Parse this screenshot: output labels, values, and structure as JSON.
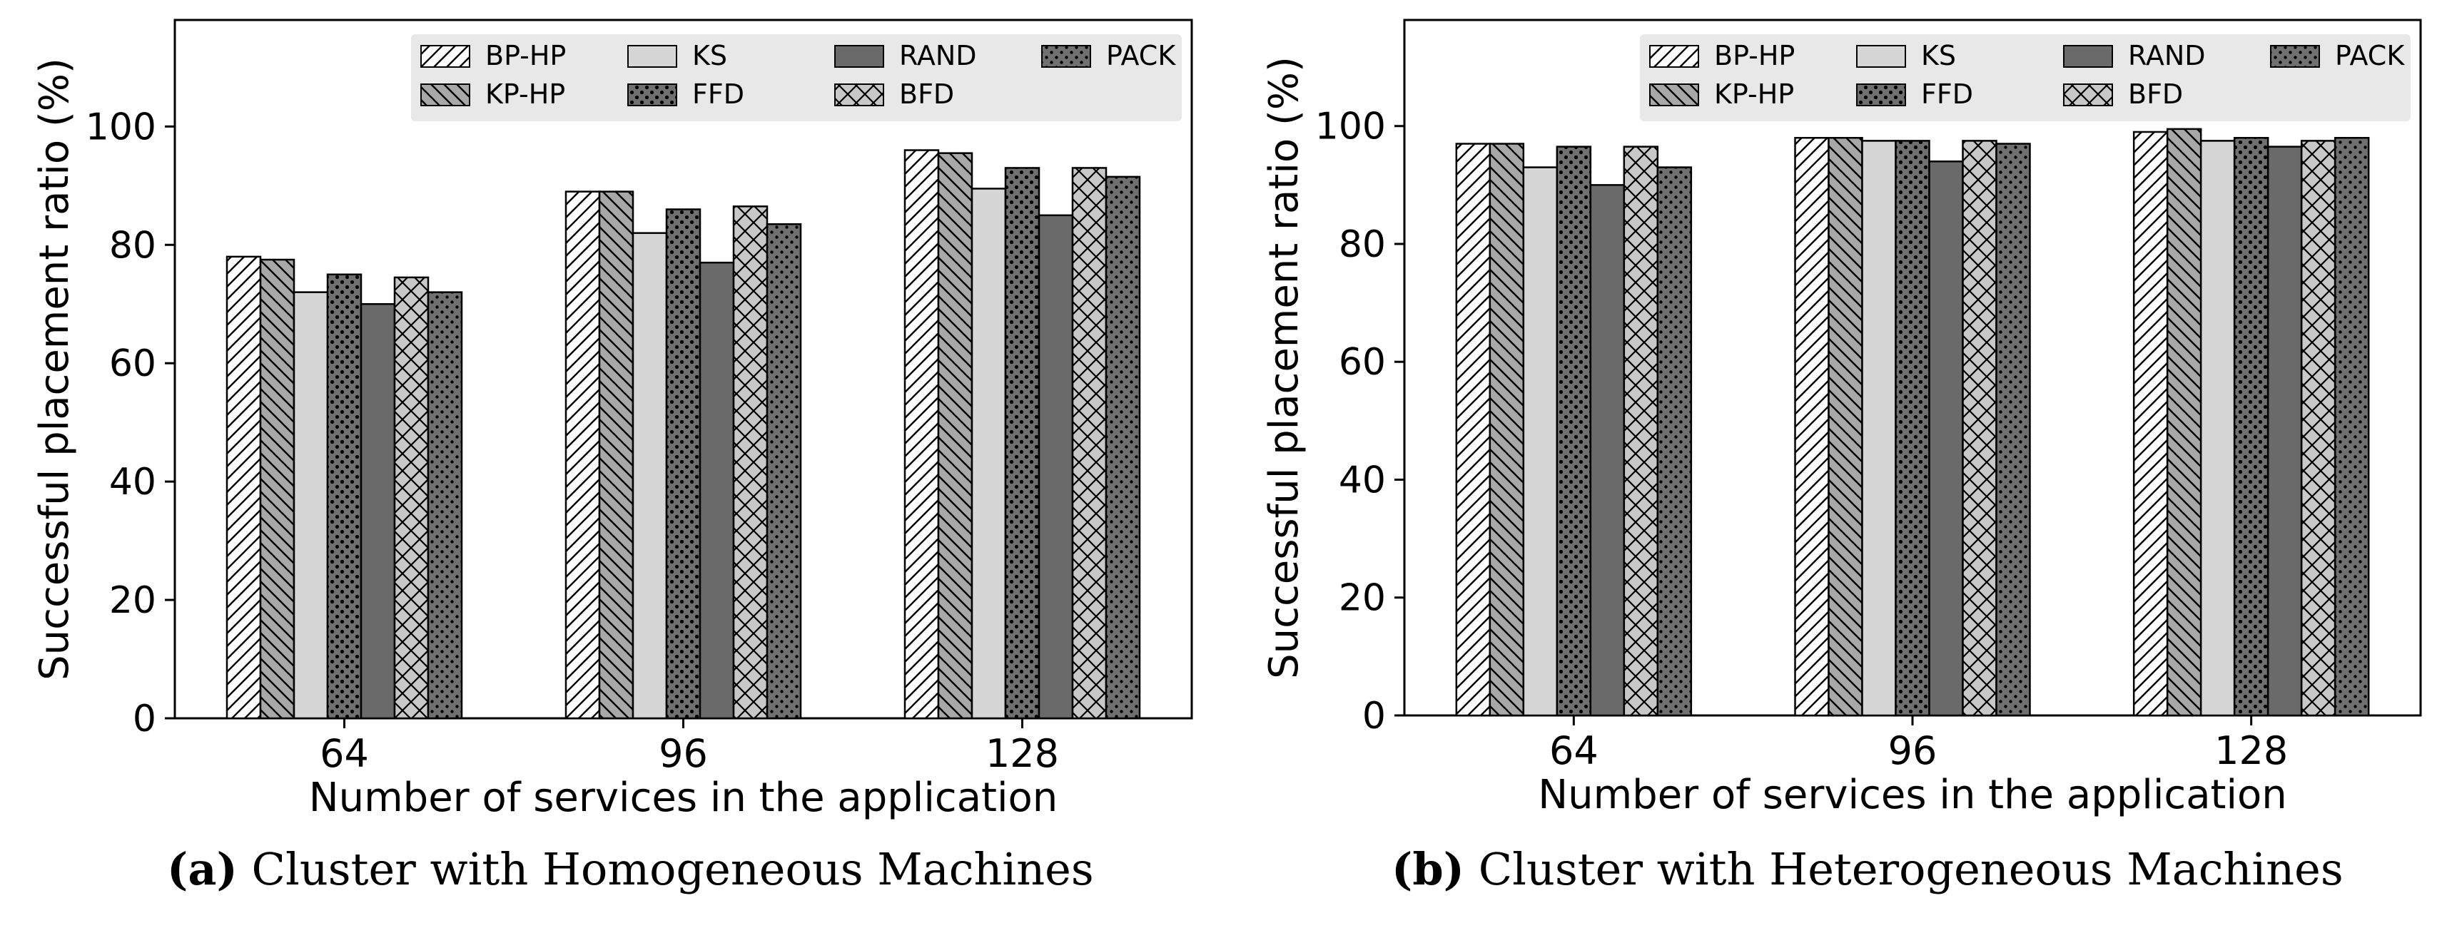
{
  "palette": {
    "BP-HP": {
      "fill": "#ffffff",
      "hatch": "diag-fwd",
      "hatch_color": "#000000"
    },
    "KP-HP": {
      "fill": "#a8a8a8",
      "hatch": "diag-back",
      "hatch_color": "#000000"
    },
    "KS": {
      "fill": "#d6d6d6",
      "hatch": "none",
      "hatch_color": "#000000"
    },
    "FFD": {
      "fill": "#707070",
      "hatch": "dots-white",
      "hatch_color": "#ffffff"
    },
    "RAND": {
      "fill": "#6a6a6a",
      "hatch": "none",
      "hatch_color": "#000000"
    },
    "BFD": {
      "fill": "#c8c8c8",
      "hatch": "cross",
      "hatch_color": "#000000"
    },
    "PACK": {
      "fill": "#707070",
      "hatch": "dots-black",
      "hatch_color": "#000000"
    }
  },
  "chart_data": [
    {
      "type": "bar",
      "caption_letter": "(a)",
      "caption_text": "Cluster with Homogeneous Machines",
      "xlabel": "Number of services in the application",
      "ylabel": "Successful placement ratio (%)",
      "ylim": [
        0,
        118
      ],
      "yticks": [
        "0",
        "20",
        "40",
        "60",
        "80",
        "100"
      ],
      "categories": [
        "64",
        "96",
        "128"
      ],
      "legend": {
        "placement": "top-right",
        "columns": [
          [
            "BP-HP",
            "KP-HP"
          ],
          [
            "KS",
            "FFD"
          ],
          [
            "RAND",
            "BFD"
          ],
          [
            "PACK"
          ]
        ]
      },
      "series": [
        {
          "name": "BP-HP",
          "values": [
            78,
            89,
            96
          ]
        },
        {
          "name": "KP-HP",
          "values": [
            77.5,
            89,
            95.5
          ]
        },
        {
          "name": "KS",
          "values": [
            72,
            82,
            89.5
          ]
        },
        {
          "name": "FFD",
          "values": [
            75,
            86,
            93
          ]
        },
        {
          "name": "RAND",
          "values": [
            70,
            77,
            85
          ]
        },
        {
          "name": "BFD",
          "values": [
            74.5,
            86.5,
            93
          ]
        },
        {
          "name": "PACK",
          "values": [
            72,
            83.5,
            91.5
          ]
        }
      ]
    },
    {
      "type": "bar",
      "caption_letter": "(b)",
      "caption_text": "Cluster with Heterogeneous Machines",
      "xlabel": "Number of services in the application",
      "ylabel": "Successful placement ratio (%)",
      "ylim": [
        0,
        118
      ],
      "yticks": [
        "0",
        "20",
        "40",
        "60",
        "80",
        "100"
      ],
      "categories": [
        "64",
        "96",
        "128"
      ],
      "legend": {
        "placement": "top-right",
        "columns": [
          [
            "BP-HP",
            "KP-HP"
          ],
          [
            "KS",
            "FFD"
          ],
          [
            "RAND",
            "BFD"
          ],
          [
            "PACK"
          ]
        ]
      },
      "series": [
        {
          "name": "BP-HP",
          "values": [
            97,
            98,
            99
          ]
        },
        {
          "name": "KP-HP",
          "values": [
            97,
            98,
            99.5
          ]
        },
        {
          "name": "KS",
          "values": [
            93,
            97.5,
            97.5
          ]
        },
        {
          "name": "FFD",
          "values": [
            96.5,
            97.5,
            98
          ]
        },
        {
          "name": "RAND",
          "values": [
            90,
            94,
            96.5
          ]
        },
        {
          "name": "BFD",
          "values": [
            96.5,
            97.5,
            97.5
          ]
        },
        {
          "name": "PACK",
          "values": [
            93,
            97,
            98
          ]
        }
      ]
    }
  ]
}
